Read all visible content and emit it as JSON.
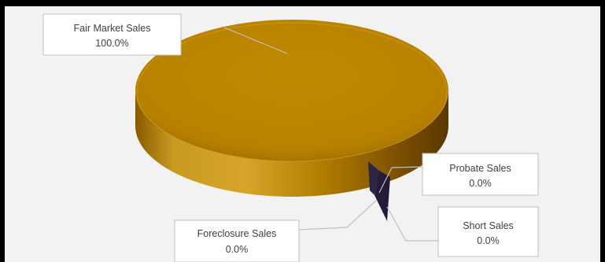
{
  "chart_data": {
    "type": "pie",
    "style": "3d",
    "categories": [
      "Fair Market  Sales",
      "Probate Sales",
      "Short Sales",
      "Foreclosure Sales"
    ],
    "values": [
      100.0,
      0.0,
      0.0,
      0.0
    ],
    "value_labels": [
      "100.0%",
      "0.0%",
      "0.0%",
      "0.0%"
    ],
    "colors": {
      "fair_market": "#b8860b",
      "small_slices": "#2e2448",
      "background": "#f2f2f2",
      "frame": "#000000"
    },
    "legend": "none"
  }
}
